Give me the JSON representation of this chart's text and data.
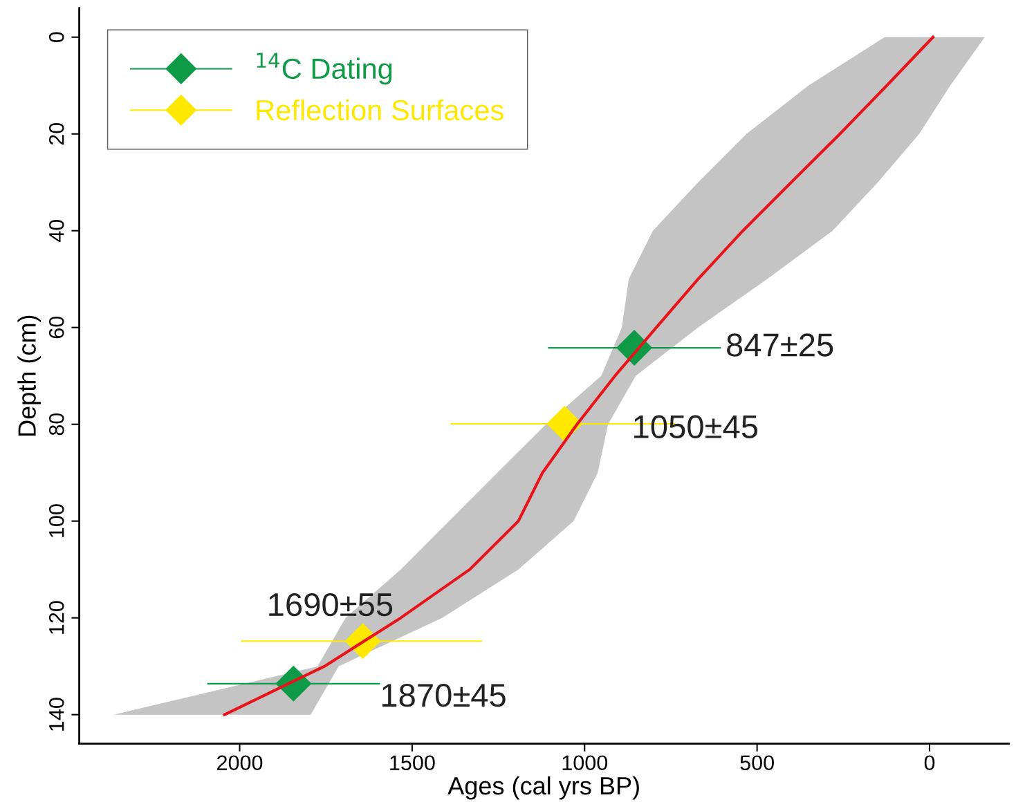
{
  "chart_data": {
    "type": "line",
    "orientation": "horizontal",
    "xlabel": "Ages (cal yrs BP)",
    "ylabel": "Depth (cm)",
    "xlim": [
      2465,
      -230
    ],
    "ylim": [
      146,
      -6
    ],
    "xticks": [
      2000,
      1500,
      1000,
      500,
      0
    ],
    "yticks": [
      0,
      20,
      40,
      60,
      80,
      100,
      120,
      140
    ],
    "legend": "top left",
    "series": [
      {
        "color": "#e8141b",
        "x": [
          0,
          10,
          20,
          30,
          40,
          50,
          60,
          70,
          80,
          90,
          100,
          110,
          120,
          130,
          140
        ],
        "values": [
          -10,
          124,
          260,
          401,
          541,
          671,
          792,
          912,
          1022,
          1122,
          1192,
          1333,
          1533,
          1754,
          2044
        ],
        "lower": [
          -160,
          -60,
          30,
          150,
          281,
          471,
          671,
          852,
          932,
          962,
          1032,
          1192,
          1413,
          1713,
          1794
        ],
        "upper": [
          130,
          351,
          531,
          671,
          802,
          872,
          892,
          952,
          1112,
          1253,
          1393,
          1533,
          1693,
          1774,
          2365
        ]
      },
      {
        "type": "scatter",
        "name": "$^{14}$C Dating",
        "color": "#0f9a48",
        "marker": "diamond",
        "x": [
          64.2,
          133.6
        ],
        "values": [
          856,
          1844
        ],
        "errors": [
          [
            605,
            1106
          ],
          [
            1593,
            2094
          ]
        ]
      },
      {
        "type": "scatter",
        "name": "Reflection Surfaces",
        "color": "#ffe800",
        "marker": "diamond",
        "x": [
          79.9,
          124.8
        ],
        "values": [
          1058,
          1643
        ],
        "errors": [
          [
            737,
            1389
          ],
          [
            1297,
            1996
          ]
        ]
      }
    ],
    "annotations": [
      {
        "text": "847±25",
        "x": 856,
        "y": 64.2
      },
      {
        "text": "1050±45",
        "x": 1058,
        "y": 79.9
      },
      {
        "text": "1690±55",
        "x": 1643,
        "y": 124.8
      },
      {
        "text": "1870±45",
        "x": 1844,
        "y": 133.6
      }
    ]
  }
}
